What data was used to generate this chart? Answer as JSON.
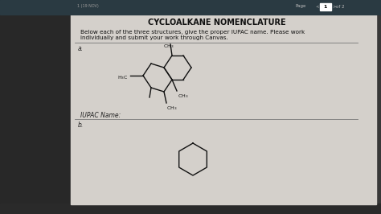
{
  "bg_color": "#3a3a3a",
  "left_shadow": "#2a2a2a",
  "paper_bg": "#c8c5c0",
  "paper_inner": "#d4d0cb",
  "header_bar_color": "#2a3a42",
  "title": "CYCLOALKANE NOMENCLATURE",
  "title_fontsize": 7,
  "instruction_line1": "Below each of the three structures, give the proper IUPAC name. Please work",
  "instruction_line2": "individually and submit your work through Canvas.",
  "instruction_fontsize": 5.2,
  "label_a": "a.",
  "label_b": "b.",
  "iupac_label": "IUPAC Name:",
  "iupac_fontsize": 5.5,
  "line_color": "#777777",
  "mol_color": "#111111",
  "mol_lw": 1.0,
  "page_text_color": "#bbbbbb",
  "url_color": "#999999"
}
